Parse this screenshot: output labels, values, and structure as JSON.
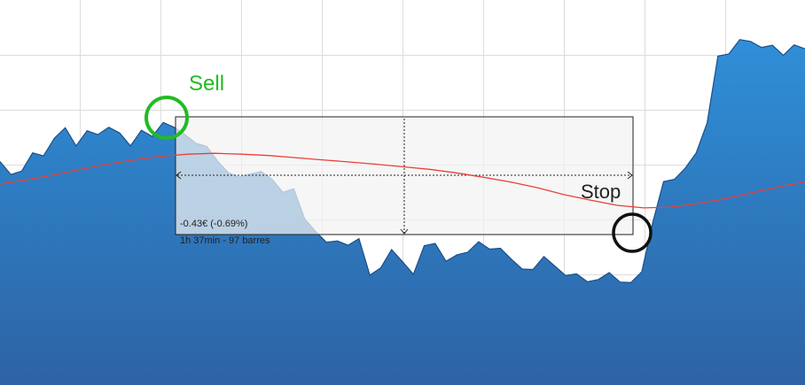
{
  "chart_data": {
    "type": "area",
    "title": "",
    "xlabel": "",
    "ylabel": "",
    "grid": true,
    "colors": {
      "area_top": "#2f8fd8",
      "area_bottom": "#2d63a4",
      "price_line": "#1a4f8a",
      "moving_average": "#e8403a",
      "sell_circle": "#22bb22",
      "stop_circle": "#111111",
      "measure_box_fill": "#f3f3f3",
      "measure_box_stroke": "#222222"
    },
    "series": [
      {
        "values": [
          55.2,
          52.2,
          53.0,
          57.2,
          56.5,
          60.6,
          63.0,
          58.8,
          62.3,
          61.4,
          63.1,
          61.8,
          58.8,
          62.4,
          61.0,
          64.2,
          63.1,
          61.4,
          59.4,
          58.7,
          55.3,
          52.6,
          51.6,
          52.3,
          52.9,
          51.1,
          48.1,
          48.9,
          42.0,
          39.1,
          36.6,
          36.9,
          35.9,
          37.4,
          29.0,
          30.7,
          34.9,
          32.1,
          29.2,
          35.8,
          36.3,
          32.2,
          33.7,
          34.3,
          36.7,
          35.0,
          35.2,
          32.7,
          30.4,
          30.3,
          33.3,
          31.1,
          28.9,
          29.3,
          27.5,
          28.0,
          29.6,
          27.4,
          27.3,
          29.8,
          41.1,
          50.6,
          51.1,
          53.7,
          57.2,
          64.1,
          79.5,
          80.0,
          83.3,
          82.9,
          81.5,
          82.0,
          79.7,
          82.1,
          81.2
        ]
      },
      {
        "values": [
          50.0,
          51.0,
          52.1,
          53.4,
          54.6,
          55.6,
          56.4,
          56.9,
          57.1,
          56.9,
          56.6,
          56.1,
          55.6,
          55.1,
          54.6,
          54.0,
          53.4,
          52.6,
          51.6,
          50.5,
          49.2,
          47.6,
          46.3,
          45.1,
          44.5,
          44.7,
          45.5,
          46.6,
          48.0,
          49.3,
          50.5
        ]
      }
    ],
    "annotations": {
      "sell_label": "Sell",
      "stop_label": "Stop",
      "measure_change": "-0.43€ (-0.69%)",
      "measure_duration": "1h 37min - 97 barres"
    }
  }
}
